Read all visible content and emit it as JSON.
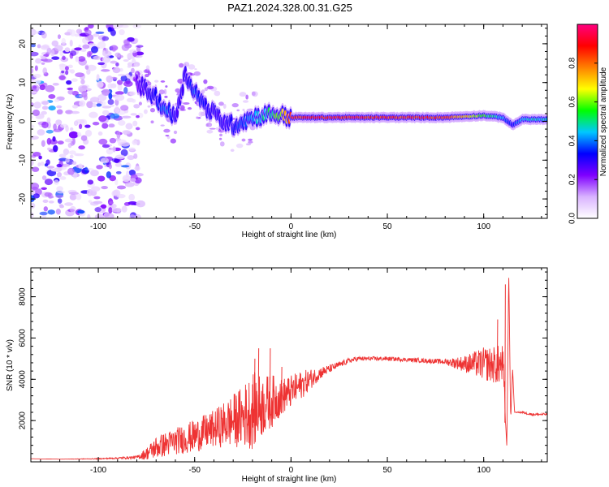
{
  "title": "PAZ1.2024.328.00.31.G25",
  "chart_data": [
    {
      "type": "heatmap",
      "xlabel": "Height of straight line (km)",
      "ylabel": "Frequency (Hz)",
      "xlim": [
        -135,
        133
      ],
      "ylim": [
        -25,
        25
      ],
      "xticks": [
        -100,
        -50,
        0,
        50,
        100
      ],
      "yticks": [
        20,
        10,
        0,
        -10,
        -20
      ],
      "grid": false,
      "colorbar": {
        "label": "Normalized spectral amplitude",
        "range": [
          0,
          1
        ],
        "ticks": [
          "0.0",
          "0.2",
          "0.4",
          "0.6",
          "0.8"
        ],
        "colormap": [
          "#ffffff",
          "#d9b3ff",
          "#7f00ff",
          "#0000ff",
          "#00c8ff",
          "#00ff00",
          "#ffff00",
          "#ff8000",
          "#ff0000",
          "#ff0080"
        ]
      },
      "ridge": {
        "x": [
          -80,
          -70,
          -65,
          -60,
          -55,
          -50,
          -45,
          -40,
          -35,
          -30,
          -25,
          -20,
          -15,
          -10,
          -5,
          0,
          20,
          40,
          60,
          80,
          100,
          110,
          115,
          120,
          133
        ],
        "y": [
          10,
          6,
          3,
          1,
          12,
          8,
          4,
          2,
          0,
          -1,
          0,
          1,
          1.5,
          2,
          1.5,
          1,
          1,
          1,
          1,
          1,
          1.5,
          1,
          -1,
          0.5,
          0.5
        ],
        "amplitude": [
          0.25,
          0.35,
          0.45,
          0.3,
          0.3,
          0.4,
          0.35,
          0.3,
          0.3,
          0.35,
          0.4,
          0.45,
          0.5,
          0.55,
          0.7,
          0.95,
          0.95,
          0.95,
          0.95,
          0.9,
          0.6,
          0.45,
          0.35,
          0.5,
          0.5
        ]
      },
      "noise_region": {
        "x": [
          -135,
          -78
        ],
        "amplitude": 0.2
      }
    },
    {
      "type": "line",
      "xlabel": "Height of straight line (km)",
      "ylabel": "SNR (10 * v/v)",
      "xlim": [
        -135,
        133
      ],
      "ylim": [
        0,
        9400
      ],
      "xticks": [
        -100,
        -50,
        0,
        50,
        100
      ],
      "yticks": [
        2000,
        4000,
        6000,
        8000
      ],
      "grid": false,
      "color": "#ee3333",
      "series": [
        {
          "x": [
            -135,
            -120,
            -100,
            -90,
            -80,
            -75,
            -70,
            -60,
            -50,
            -40,
            -30,
            -25,
            -20,
            -15,
            -10,
            -5,
            0,
            5,
            10,
            15,
            20,
            25,
            30,
            35,
            40,
            50,
            60,
            70,
            80,
            90,
            100,
            105,
            110,
            112,
            113,
            114,
            115,
            116,
            120,
            125,
            133
          ],
          "y": [
            150,
            130,
            150,
            180,
            220,
            400,
            700,
            1000,
            1250,
            1600,
            2000,
            2200,
            2500,
            2700,
            2950,
            3150,
            3400,
            3700,
            4000,
            4300,
            4500,
            4700,
            4900,
            5000,
            5000,
            5000,
            4950,
            4900,
            4850,
            4750,
            4750,
            4700,
            4700,
            700,
            9200,
            2000,
            4500,
            2400,
            2400,
            2300,
            2300
          ],
          "noise": [
            0,
            0,
            20,
            40,
            80,
            300,
            550,
            650,
            800,
            900,
            1300,
            1500,
            1900,
            1500,
            1300,
            900,
            800,
            700,
            500,
            300,
            200,
            150,
            130,
            110,
            100,
            100,
            100,
            110,
            130,
            400,
            800,
            900,
            1000,
            0,
            0,
            0,
            0,
            0,
            60,
            60,
            60
          ],
          "spikes": [
            {
              "x": -17,
              "y": 5500
            },
            {
              "x": -11,
              "y": 5500
            },
            {
              "x": -19,
              "y": 5000
            },
            {
              "x": -5,
              "y": 4600
            },
            {
              "x": 107,
              "y": 6900
            },
            {
              "x": 111,
              "y": 8600
            }
          ]
        }
      ]
    }
  ]
}
